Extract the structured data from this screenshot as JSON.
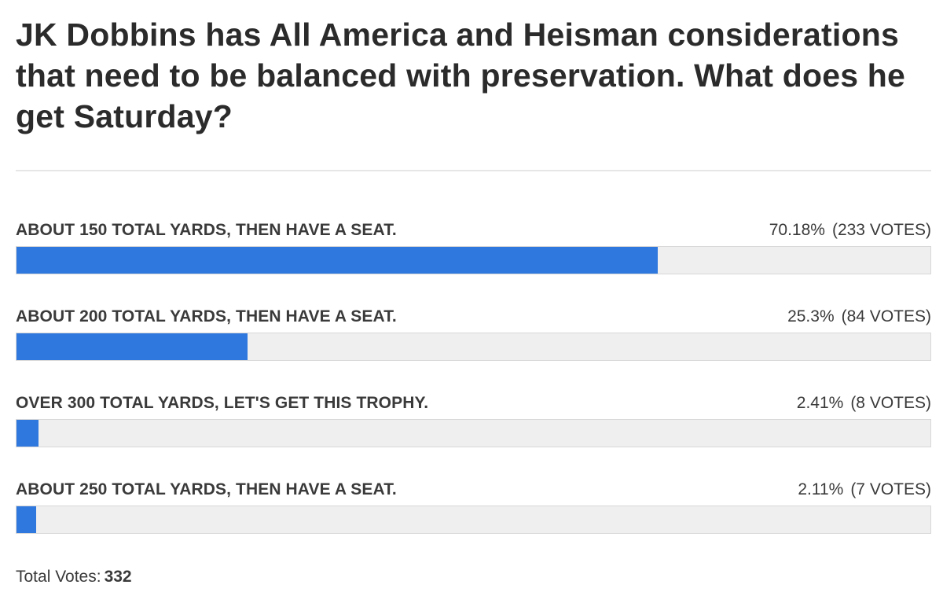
{
  "poll": {
    "question": "JK Dobbins has All America and Heisman considerations that need to be balanced with preservation. What does he get Saturday?",
    "options": [
      {
        "label": "ABOUT 150 TOTAL YARDS, THEN HAVE A SEAT.",
        "percent_text": "70.18%",
        "votes_text": "(233 VOTES)",
        "share": 0.7018
      },
      {
        "label": "ABOUT 200 TOTAL YARDS, THEN HAVE A SEAT.",
        "percent_text": "25.3%",
        "votes_text": "(84 VOTES)",
        "share": 0.253
      },
      {
        "label": "OVER 300 TOTAL YARDS, LET'S GET THIS TROPHY.",
        "percent_text": "2.41%",
        "votes_text": "(8 VOTES)",
        "share": 0.0241
      },
      {
        "label": "ABOUT 250 TOTAL YARDS, THEN HAVE A SEAT.",
        "percent_text": "2.11%",
        "votes_text": "(7 VOTES)",
        "share": 0.0211
      }
    ],
    "total_label": "Total Votes:",
    "total_votes": "332"
  },
  "colors": {
    "bar_fill": "#2f78de",
    "bar_track": "#efefef",
    "divider": "#e6e6e6"
  }
}
